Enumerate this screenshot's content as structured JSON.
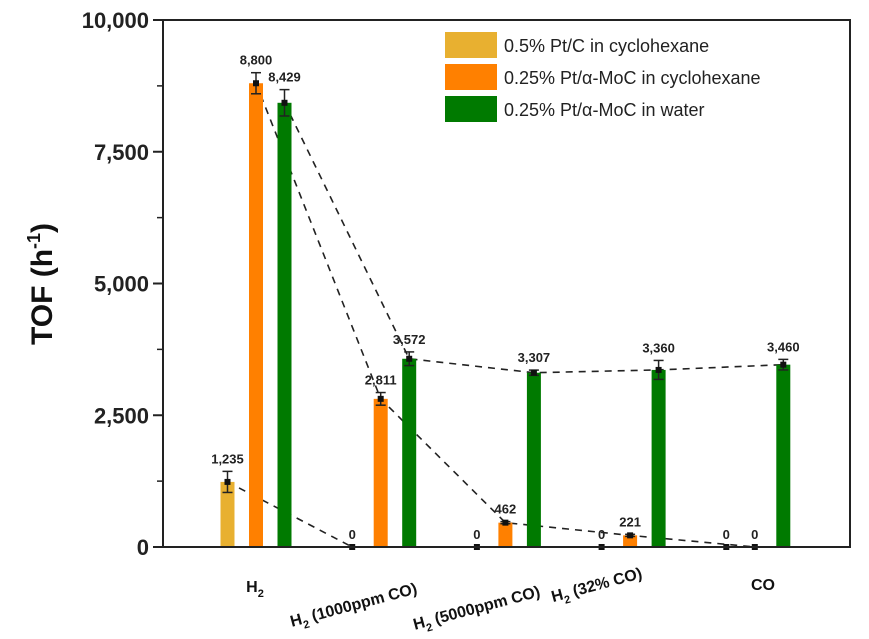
{
  "chart_data": {
    "type": "bar",
    "title": "",
    "xlabel": "",
    "ylabel": "TOF (h-1)",
    "ylabel_main": "TOF (h",
    "ylabel_sup": "-1",
    "ylabel_close": ")",
    "ylim": [
      0,
      10000
    ],
    "yticks": [
      "0",
      "2,500",
      "5,000",
      "7,500",
      "10,000"
    ],
    "ytick_values": [
      0,
      2500,
      5000,
      7500,
      10000
    ],
    "grid": false,
    "legend_position": "top-right",
    "categories": [
      {
        "main": "H",
        "sub": "2",
        "rest": ""
      },
      {
        "main": "H",
        "sub": "2",
        "rest": " (1000ppm CO)"
      },
      {
        "main": "H",
        "sub": "2",
        "rest": " (5000ppm CO)"
      },
      {
        "main": "H",
        "sub": "2",
        "rest": " (32% CO)"
      },
      {
        "main": "CO",
        "sub": "",
        "rest": ""
      }
    ],
    "series": [
      {
        "name": "0.5% Pt/C in cyclohexane",
        "color": "#E8B030",
        "values": [
          1235,
          0,
          0,
          0,
          0
        ],
        "labels": [
          "1,235",
          "0",
          "0",
          "0",
          "0"
        ],
        "errors": [
          200,
          0,
          0,
          0,
          0
        ]
      },
      {
        "name": "0.25% Pt/α-MoC in cyclohexane",
        "color": "#FF8000",
        "values": [
          8800,
          2811,
          462,
          221,
          0
        ],
        "labels": [
          "8,800",
          "2,811",
          "462",
          "221",
          "0"
        ],
        "errors": [
          200,
          120,
          20,
          20,
          0
        ]
      },
      {
        "name": "0.25% Pt/α-MoC in water",
        "color": "#007A00",
        "values": [
          8429,
          3572,
          3307,
          3360,
          3460
        ],
        "labels": [
          "8,429",
          "3,572",
          "3,307",
          "3,360",
          "3,460"
        ],
        "errors": [
          250,
          130,
          50,
          180,
          100
        ]
      }
    ],
    "connector_lines": "dashed"
  }
}
